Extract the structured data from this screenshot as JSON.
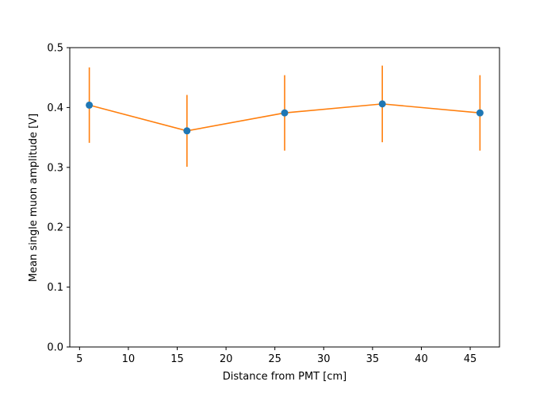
{
  "chart_data": {
    "type": "scatter",
    "title": "",
    "xlabel": "Distance from PMT [cm]",
    "ylabel": "Mean single muon amplitude [V]",
    "xlim": [
      4,
      48
    ],
    "ylim": [
      0,
      0.5
    ],
    "xticks": [
      5,
      10,
      15,
      20,
      25,
      30,
      35,
      40,
      45
    ],
    "yticks": [
      0.0,
      0.1,
      0.2,
      0.3,
      0.4,
      0.5
    ],
    "xtick_labels": [
      "5",
      "10",
      "15",
      "20",
      "25",
      "30",
      "35",
      "40",
      "45"
    ],
    "ytick_labels": [
      "0.0",
      "0.1",
      "0.2",
      "0.3",
      "0.4",
      "0.5"
    ],
    "grid": false,
    "series": [
      {
        "x": [
          6,
          16,
          26,
          36,
          46
        ],
        "y": [
          0.404,
          0.361,
          0.391,
          0.406,
          0.391
        ],
        "yerr": [
          0.063,
          0.06,
          0.063,
          0.064,
          0.063
        ],
        "marker_color": "#1f77b4",
        "line_color": "#ff7f0e"
      }
    ]
  }
}
